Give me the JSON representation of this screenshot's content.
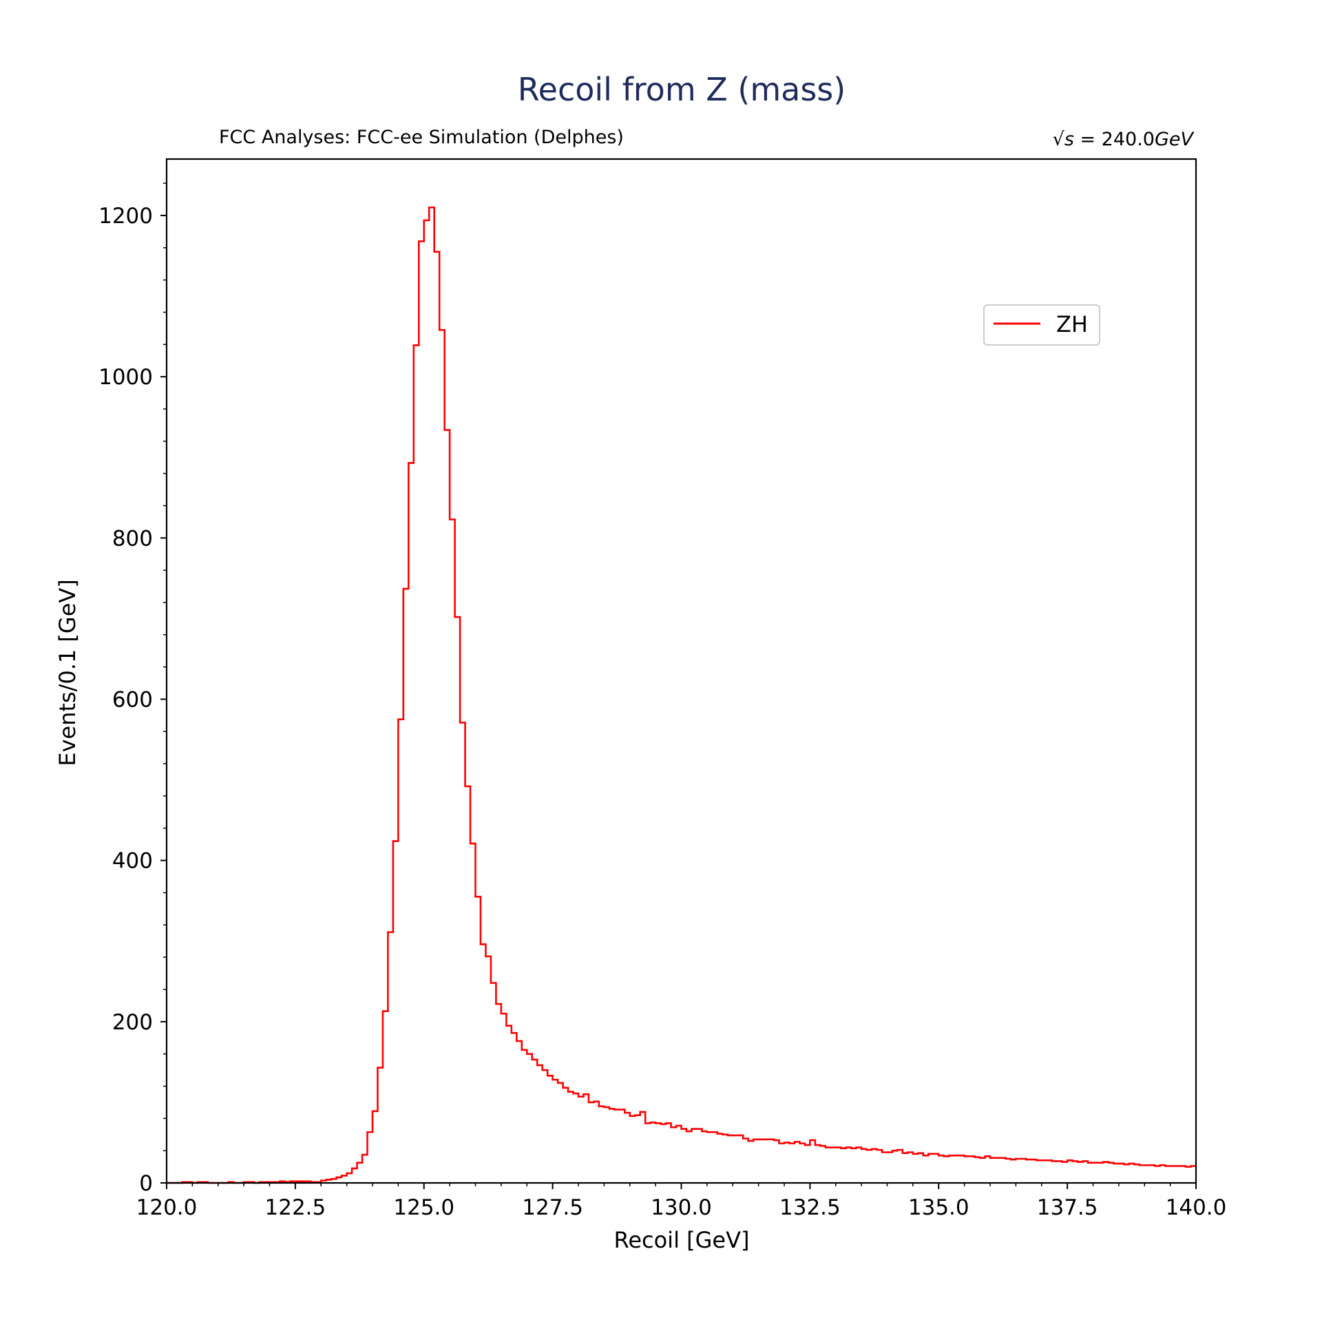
{
  "chart_data": {
    "type": "line",
    "title": "Recoil from Z (mass)",
    "subtitle_left": "FCC Analyses: FCC-ee Simulation (Delphes)",
    "energy_label": {
      "sqrt_symbol": "√",
      "variable": "s",
      "equals": " = 240.0",
      "unit": "GeV"
    },
    "xlabel": "Recoil [GeV]",
    "ylabel": "Events/0.1 [GeV]",
    "xlim": [
      120.0,
      140.0
    ],
    "ylim": [
      0,
      1270
    ],
    "xticks": [
      120.0,
      122.5,
      125.0,
      127.5,
      130.0,
      132.5,
      135.0,
      137.5,
      140.0
    ],
    "xtick_labels": [
      "120.0",
      "122.5",
      "125.0",
      "127.5",
      "130.0",
      "132.5",
      "135.0",
      "137.5",
      "140.0"
    ],
    "yticks": [
      0,
      200,
      400,
      600,
      800,
      1000,
      1200
    ],
    "ytick_labels": [
      "0",
      "200",
      "400",
      "600",
      "800",
      "1000",
      "1200"
    ],
    "grid": false,
    "legend": {
      "position": "upper-right",
      "entries": [
        "ZH"
      ]
    },
    "series": [
      {
        "name": "ZH",
        "color": "#ff0000",
        "style": "step-histogram",
        "bin_width": 0.1,
        "x_start": 120.0,
        "values": [
          0,
          0,
          0,
          1,
          1,
          0,
          1,
          1,
          0,
          0,
          0,
          0,
          1,
          0,
          0,
          1,
          1,
          0,
          1,
          1,
          1,
          1,
          2,
          1,
          2,
          2,
          2,
          2,
          1,
          1,
          3,
          4,
          5,
          7,
          9,
          12,
          18,
          25,
          35,
          63,
          89,
          143,
          213,
          311,
          424,
          575,
          737,
          893,
          1039,
          1168,
          1194,
          1210,
          1155,
          1058,
          934,
          823,
          702,
          571,
          492,
          421,
          355,
          296,
          281,
          248,
          222,
          210,
          195,
          186,
          176,
          165,
          160,
          153,
          146,
          140,
          133,
          128,
          124,
          118,
          113,
          111,
          107,
          110,
          100,
          101,
          95,
          94,
          92,
          91,
          91,
          87,
          83,
          84,
          88,
          74,
          75,
          74,
          73,
          74,
          69,
          71,
          67,
          64,
          67,
          67,
          64,
          63,
          63,
          61,
          60,
          59,
          59,
          59,
          55,
          52,
          54,
          54,
          54,
          54,
          53,
          49,
          50,
          49,
          51,
          49,
          47,
          53,
          47,
          46,
          44,
          44,
          44,
          43,
          44,
          43,
          44,
          42,
          41,
          42,
          41,
          38,
          38,
          40,
          41,
          37,
          38,
          36,
          37,
          34,
          36,
          36,
          34,
          33,
          34,
          34,
          34,
          33,
          33,
          32,
          31,
          33,
          31,
          31,
          31,
          30,
          29,
          30,
          30,
          29,
          29,
          28,
          28,
          28,
          27,
          27,
          26,
          28,
          27,
          26,
          27,
          25,
          25,
          25,
          26,
          25,
          24,
          24,
          23,
          24,
          23,
          22,
          22,
          22,
          21,
          22,
          21,
          21,
          21,
          21,
          20,
          21
        ]
      }
    ]
  }
}
